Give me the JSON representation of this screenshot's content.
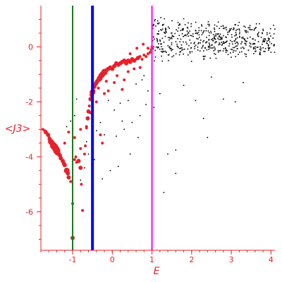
{
  "chart_data": {
    "type": "scatter",
    "title": "",
    "xlabel": "E",
    "ylabel": "<J3>",
    "xlim": [
      -1.8,
      4.1
    ],
    "ylim": [
      -7.4,
      1.5
    ],
    "x_ticks": [
      -1,
      0,
      1,
      2,
      3,
      4
    ],
    "x_tick_labels": [
      "-1",
      "0",
      "1",
      "2",
      "3",
      "4"
    ],
    "y_ticks": [
      0,
      -2,
      -4,
      -6
    ],
    "y_tick_labels": [
      "0",
      "-2",
      "-4",
      "-6"
    ],
    "grid": false,
    "colors": {
      "axis": "#e8202a",
      "red_points": "#e8202a",
      "black_points": "#000000",
      "vline_green": "#1a7a1a",
      "vline_blue": "#0000ff",
      "vline_magenta": "#ff00ff"
    },
    "vertical_lines": [
      {
        "x": -1.0,
        "color": "#1a7a1a",
        "width": "thin"
      },
      {
        "x": -0.5,
        "color": "#0000ff",
        "width": "thick"
      },
      {
        "x": 1.0,
        "color": "#ff00ff",
        "width": "thin"
      }
    ],
    "series": [
      {
        "color": "#e8202a",
        "points": [
          [
            -1.75,
            -3.0,
            2
          ],
          [
            -1.7,
            -3.05,
            2
          ],
          [
            -1.68,
            -3.1,
            3
          ],
          [
            -1.65,
            -3.15,
            2
          ],
          [
            -1.62,
            -3.2,
            3
          ],
          [
            -1.6,
            -3.25,
            2
          ],
          [
            -1.58,
            -3.35,
            3
          ],
          [
            -1.55,
            -3.45,
            4
          ],
          [
            -1.52,
            -3.5,
            4
          ],
          [
            -1.5,
            -3.55,
            4
          ],
          [
            -1.48,
            -3.6,
            5
          ],
          [
            -1.45,
            -3.65,
            5
          ],
          [
            -1.42,
            -3.72,
            5
          ],
          [
            -1.4,
            -3.78,
            5
          ],
          [
            -1.38,
            -3.85,
            4
          ],
          [
            -1.35,
            -3.9,
            3
          ],
          [
            -1.32,
            -3.95,
            3
          ],
          [
            -1.3,
            -4.05,
            3
          ],
          [
            -1.25,
            -4.15,
            3
          ],
          [
            -1.22,
            -4.25,
            3
          ],
          [
            -1.2,
            -4.3,
            3
          ],
          [
            -1.15,
            -4.5,
            4
          ],
          [
            -1.12,
            -4.6,
            3
          ],
          [
            -1.1,
            -4.75,
            3
          ],
          [
            -1.05,
            -4.9,
            2
          ],
          [
            -1.0,
            -5.7,
            2
          ],
          [
            -1.0,
            -6.95,
            3
          ],
          [
            -0.95,
            -4.1,
            2
          ],
          [
            -0.92,
            -4.0,
            2
          ],
          [
            -0.9,
            -4.2,
            2
          ],
          [
            -0.85,
            -4.15,
            3
          ],
          [
            -0.8,
            -4.4,
            3
          ],
          [
            -0.78,
            -5.0,
            2
          ],
          [
            -0.75,
            -5.95,
            2
          ],
          [
            -0.7,
            -3.9,
            2
          ],
          [
            -0.68,
            -3.6,
            2
          ],
          [
            -0.65,
            -2.95,
            2
          ],
          [
            -0.62,
            -2.6,
            3
          ],
          [
            -0.6,
            -2.35,
            3
          ],
          [
            -0.58,
            -2.15,
            2
          ],
          [
            -0.55,
            -1.9,
            3
          ],
          [
            -0.52,
            -1.75,
            3
          ],
          [
            -0.5,
            -1.65,
            4
          ],
          [
            -0.48,
            -1.6,
            3
          ],
          [
            -0.45,
            -1.45,
            3
          ],
          [
            -0.42,
            -1.35,
            3
          ],
          [
            -0.4,
            -1.3,
            3
          ],
          [
            -0.38,
            -1.25,
            3
          ],
          [
            -0.35,
            -1.2,
            3
          ],
          [
            -0.32,
            -1.15,
            4
          ],
          [
            -0.3,
            -1.1,
            3
          ],
          [
            -0.28,
            -1.05,
            4
          ],
          [
            -0.25,
            -1.0,
            4
          ],
          [
            -0.22,
            -0.95,
            4
          ],
          [
            -0.2,
            -0.9,
            4
          ],
          [
            -0.18,
            -0.95,
            3
          ],
          [
            -0.15,
            -0.85,
            3
          ],
          [
            -0.1,
            -0.8,
            3
          ],
          [
            -0.05,
            -0.75,
            3
          ],
          [
            0.0,
            -0.8,
            3
          ],
          [
            0.05,
            -0.7,
            3
          ],
          [
            0.1,
            -0.6,
            3
          ],
          [
            0.15,
            -0.65,
            3
          ],
          [
            0.2,
            -0.6,
            3
          ],
          [
            0.25,
            -0.55,
            3
          ],
          [
            0.3,
            -0.5,
            3
          ],
          [
            0.35,
            -0.6,
            3
          ],
          [
            0.4,
            -0.5,
            3
          ],
          [
            0.45,
            -0.55,
            3
          ],
          [
            0.5,
            -0.45,
            3
          ],
          [
            0.55,
            -0.5,
            3
          ],
          [
            0.6,
            -0.45,
            2
          ],
          [
            0.65,
            -0.4,
            3
          ],
          [
            0.7,
            -0.35,
            2
          ],
          [
            0.75,
            -0.45,
            2
          ],
          [
            0.8,
            -0.3,
            2
          ],
          [
            0.85,
            -0.35,
            2
          ],
          [
            0.9,
            -0.25,
            2
          ],
          [
            0.95,
            -0.2,
            2
          ],
          [
            0.98,
            -0.1,
            2
          ],
          [
            1.0,
            0.0,
            2
          ],
          [
            -0.3,
            -3.2,
            2
          ],
          [
            -0.25,
            -3.5,
            2
          ],
          [
            -0.1,
            -1.6,
            2
          ],
          [
            0.05,
            -1.3,
            2
          ],
          [
            0.25,
            -1.55,
            2
          ],
          [
            0.4,
            -0.9,
            2
          ],
          [
            0.55,
            -0.8,
            2
          ],
          [
            -0.8,
            -3.0,
            2
          ],
          [
            -0.55,
            -2.4,
            2
          ],
          [
            -0.4,
            -2.0,
            2
          ],
          [
            -0.2,
            -1.7,
            2
          ],
          [
            0.3,
            -1.2,
            2
          ],
          [
            0.7,
            -0.75,
            2
          ],
          [
            0.45,
            -0.25,
            2
          ],
          [
            0.62,
            -0.05,
            2
          ],
          [
            0.78,
            0.1,
            2
          ],
          [
            0.9,
            -0.05,
            2
          ],
          [
            -0.65,
            -2.9,
            2
          ],
          [
            -0.15,
            -1.25,
            2
          ],
          [
            0.12,
            -1.05,
            2
          ],
          [
            -0.35,
            -1.5,
            2
          ],
          [
            -1.1,
            -3.1,
            2
          ],
          [
            -1.2,
            -3.5,
            2
          ],
          [
            -0.95,
            -3.3,
            2
          ],
          [
            -0.8,
            -3.7,
            2
          ]
        ]
      },
      {
        "color": "#000000",
        "random_cloud": {
          "seed": 1237,
          "count": 520,
          "x": [
            1.0,
            4.1
          ],
          "y": [
            -1.0,
            1.1
          ]
        },
        "points": [
          [
            1.05,
            -2.2
          ],
          [
            1.2,
            -1.7
          ],
          [
            1.4,
            -3.9
          ],
          [
            1.6,
            -3.75
          ],
          [
            1.8,
            -1.4
          ],
          [
            2.1,
            -1.95
          ],
          [
            2.3,
            -2.6
          ],
          [
            2.5,
            -1.1
          ],
          [
            2.8,
            -1.9
          ],
          [
            3.1,
            -2.0
          ],
          [
            1.3,
            -5.3
          ],
          [
            1.6,
            -4.6
          ],
          [
            2.4,
            -3.3
          ],
          [
            3.3,
            -1.3
          ],
          [
            0.4,
            -1.95
          ],
          [
            0.5,
            -2.75
          ],
          [
            0.2,
            -2.05
          ],
          [
            0.7,
            -2.5
          ],
          [
            -0.1,
            -1.95
          ],
          [
            -0.3,
            -2.75
          ],
          [
            -0.2,
            -3.2
          ],
          [
            0.05,
            -2.3
          ],
          [
            -0.4,
            -3.05
          ],
          [
            -0.5,
            -3.55
          ],
          [
            -0.6,
            -3.9
          ],
          [
            -0.7,
            -4.4
          ],
          [
            -0.8,
            -4.85
          ],
          [
            -0.9,
            -1.9
          ],
          [
            -0.95,
            -2.5
          ],
          [
            -1.05,
            -2.7
          ],
          [
            -1.15,
            -2.9
          ],
          [
            0.6,
            -1.35
          ],
          [
            0.8,
            -1.05
          ],
          [
            0.9,
            -1.6
          ],
          [
            0.3,
            -3.0
          ],
          [
            0.1,
            -3.25
          ],
          [
            -0.05,
            -4.5
          ],
          [
            -0.25,
            -4.8
          ],
          [
            0.15,
            -4.35
          ],
          [
            0.45,
            -3.9
          ],
          [
            0.65,
            -3.3
          ],
          [
            -0.45,
            -4.1
          ],
          [
            -0.65,
            -3.45
          ],
          [
            0.25,
            -2.7
          ],
          [
            0.75,
            -1.2
          ],
          [
            0.85,
            -2.1
          ]
        ]
      }
    ]
  }
}
